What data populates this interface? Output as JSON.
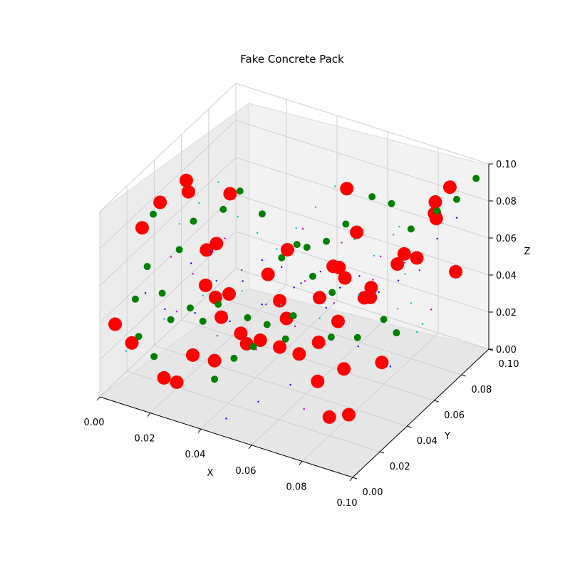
{
  "chart_data": {
    "type": "scatter3d",
    "title": "Fake Concrete Pack",
    "xlabel": "X",
    "ylabel": "Y",
    "zlabel": "Z",
    "xlim": [
      0,
      0.1
    ],
    "ylim": [
      0,
      0.1
    ],
    "zlim": [
      0,
      0.1
    ],
    "grid": true,
    "x_ticks": [
      "0.00",
      "0.02",
      "0.04",
      "0.06",
      "0.08",
      "0.10"
    ],
    "y_ticks": [
      "0.00",
      "0.02",
      "0.04",
      "0.06",
      "0.08",
      "0.10"
    ],
    "z_ticks": [
      "0.00",
      "0.02",
      "0.04",
      "0.06",
      "0.08",
      "0.10"
    ],
    "series": [
      {
        "color": "#ff0000",
        "marker_size": "large",
        "points": [
          [
            0.01,
            0.045,
            0.09
          ],
          [
            0.03,
            0.04,
            0.095
          ],
          [
            0.035,
            0.03,
            0.05
          ],
          [
            0.006,
            0.02,
            0.08
          ],
          [
            0.012,
            0.022,
            0.095
          ],
          [
            0.02,
            0.028,
            0.1
          ],
          [
            0.025,
            0.032,
            0.068
          ],
          [
            0.03,
            0.03,
            0.075
          ],
          [
            0.045,
            0.04,
            0.058
          ],
          [
            0.05,
            0.045,
            0.07
          ],
          [
            0.06,
            0.05,
            0.045
          ],
          [
            0.055,
            0.035,
            0.042
          ],
          [
            0.065,
            0.055,
            0.06
          ],
          [
            0.07,
            0.05,
            0.06
          ],
          [
            0.075,
            0.055,
            0.048
          ],
          [
            0.08,
            0.07,
            0.058
          ],
          [
            0.085,
            0.075,
            0.06
          ],
          [
            0.09,
            0.08,
            0.08
          ],
          [
            0.095,
            0.07,
            0.098
          ],
          [
            0.09,
            0.09,
            0.09
          ],
          [
            0.085,
            0.088,
            0.075
          ],
          [
            0.08,
            0.075,
            0.06
          ],
          [
            0.075,
            0.06,
            0.05
          ],
          [
            0.07,
            0.045,
            0.04
          ],
          [
            0.065,
            0.04,
            0.03
          ],
          [
            0.06,
            0.035,
            0.025
          ],
          [
            0.055,
            0.03,
            0.03
          ],
          [
            0.05,
            0.025,
            0.035
          ],
          [
            0.045,
            0.02,
            0.04
          ],
          [
            0.04,
            0.015,
            0.05
          ],
          [
            0.035,
            0.02,
            0.055
          ],
          [
            0.03,
            0.022,
            0.058
          ],
          [
            0.026,
            0.02,
            0.02
          ],
          [
            0.02,
            0.01,
            0.012
          ],
          [
            0.024,
            0.012,
            0.01
          ],
          [
            0.01,
            0.005,
            0.03
          ],
          [
            0.005,
            0.002,
            0.04
          ],
          [
            0.04,
            0.01,
            0.03
          ],
          [
            0.05,
            0.015,
            0.04
          ],
          [
            0.055,
            0.03,
            0.055
          ],
          [
            0.06,
            0.06,
            0.055
          ],
          [
            0.072,
            0.065,
            0.04
          ],
          [
            0.075,
            0.04,
            0.02
          ],
          [
            0.07,
            0.03,
            0.018
          ],
          [
            0.08,
            0.02,
            0.01
          ],
          [
            0.085,
            0.025,
            0.01
          ],
          [
            0.09,
            0.04,
            0.03
          ],
          [
            0.095,
            0.085,
            0.05
          ],
          [
            0.06,
            0.07,
            0.09
          ],
          [
            0.065,
            0.068,
            0.07
          ]
        ]
      },
      {
        "color": "#008000",
        "marker_size": "medium",
        "points": [
          [
            0.005,
            0.03,
            0.08
          ],
          [
            0.006,
            0.015,
            0.045
          ],
          [
            0.01,
            0.01,
            0.03
          ],
          [
            0.008,
            0.02,
            0.06
          ],
          [
            0.015,
            0.018,
            0.05
          ],
          [
            0.018,
            0.025,
            0.07
          ],
          [
            0.022,
            0.028,
            0.085
          ],
          [
            0.03,
            0.035,
            0.09
          ],
          [
            0.035,
            0.038,
            0.1
          ],
          [
            0.04,
            0.045,
            0.085
          ],
          [
            0.045,
            0.05,
            0.06
          ],
          [
            0.05,
            0.052,
            0.068
          ],
          [
            0.055,
            0.05,
            0.07
          ],
          [
            0.06,
            0.055,
            0.072
          ],
          [
            0.065,
            0.06,
            0.08
          ],
          [
            0.07,
            0.07,
            0.09
          ],
          [
            0.075,
            0.075,
            0.085
          ],
          [
            0.08,
            0.08,
            0.07
          ],
          [
            0.085,
            0.09,
            0.075
          ],
          [
            0.09,
            0.095,
            0.08
          ],
          [
            0.095,
            0.1,
            0.09
          ],
          [
            0.04,
            0.01,
            0.02
          ],
          [
            0.045,
            0.015,
            0.03
          ],
          [
            0.05,
            0.02,
            0.035
          ],
          [
            0.06,
            0.025,
            0.04
          ],
          [
            0.07,
            0.04,
            0.035
          ],
          [
            0.075,
            0.05,
            0.03
          ],
          [
            0.08,
            0.06,
            0.035
          ],
          [
            0.085,
            0.06,
            0.03
          ],
          [
            0.03,
            0.02,
            0.04
          ],
          [
            0.02,
            0.015,
            0.04
          ],
          [
            0.025,
            0.02,
            0.045
          ],
          [
            0.015,
            0.012,
            0.02
          ],
          [
            0.06,
            0.045,
            0.06
          ],
          [
            0.065,
            0.05,
            0.05
          ],
          [
            0.055,
            0.04,
            0.04
          ],
          [
            0.05,
            0.03,
            0.04
          ],
          [
            0.045,
            0.025,
            0.045
          ],
          [
            0.035,
            0.022,
            0.05
          ]
        ]
      },
      {
        "color": "#0000ff",
        "marker_size": "small",
        "points": [
          [
            0.02,
            0.03,
            0.06
          ],
          [
            0.025,
            0.035,
            0.065
          ],
          [
            0.03,
            0.03,
            0.055
          ],
          [
            0.035,
            0.04,
            0.05
          ],
          [
            0.04,
            0.045,
            0.06
          ],
          [
            0.045,
            0.05,
            0.055
          ],
          [
            0.05,
            0.055,
            0.045
          ],
          [
            0.055,
            0.06,
            0.05
          ],
          [
            0.06,
            0.065,
            0.04
          ],
          [
            0.065,
            0.07,
            0.045
          ],
          [
            0.07,
            0.075,
            0.035
          ],
          [
            0.075,
            0.08,
            0.04
          ],
          [
            0.08,
            0.085,
            0.05
          ],
          [
            0.085,
            0.09,
            0.06
          ],
          [
            0.09,
            0.095,
            0.07
          ],
          [
            0.015,
            0.02,
            0.04
          ],
          [
            0.01,
            0.015,
            0.05
          ],
          [
            0.028,
            0.018,
            0.045
          ],
          [
            0.038,
            0.025,
            0.04
          ],
          [
            0.048,
            0.03,
            0.05
          ],
          [
            0.058,
            0.035,
            0.06
          ],
          [
            0.068,
            0.04,
            0.05
          ],
          [
            0.078,
            0.045,
            0.03
          ],
          [
            0.088,
            0.05,
            0.02
          ],
          [
            0.05,
            0.0,
            0.01
          ],
          [
            0.06,
            0.005,
            0.02
          ],
          [
            0.07,
            0.01,
            0.03
          ]
        ]
      },
      {
        "color": "#00bfbf",
        "marker_size": "small",
        "points": [
          [
            0.01,
            0.04,
            0.07
          ],
          [
            0.015,
            0.045,
            0.08
          ],
          [
            0.02,
            0.05,
            0.09
          ],
          [
            0.025,
            0.055,
            0.07
          ],
          [
            0.03,
            0.06,
            0.06
          ],
          [
            0.035,
            0.065,
            0.05
          ],
          [
            0.04,
            0.07,
            0.06
          ],
          [
            0.045,
            0.075,
            0.07
          ],
          [
            0.05,
            0.08,
            0.08
          ],
          [
            0.055,
            0.085,
            0.05
          ],
          [
            0.06,
            0.09,
            0.04
          ],
          [
            0.065,
            0.095,
            0.05
          ],
          [
            0.07,
            0.09,
            0.06
          ],
          [
            0.075,
            0.085,
            0.04
          ],
          [
            0.08,
            0.08,
            0.03
          ],
          [
            0.085,
            0.075,
            0.02
          ],
          [
            0.09,
            0.07,
            0.03
          ],
          [
            0.005,
            0.01,
            0.02
          ],
          [
            0.012,
            0.025,
            0.03
          ],
          [
            0.022,
            0.035,
            0.04
          ],
          [
            0.032,
            0.045,
            0.04
          ],
          [
            0.042,
            0.055,
            0.03
          ],
          [
            0.052,
            0.065,
            0.02
          ],
          [
            0.062,
            0.075,
            0.03
          ],
          [
            0.072,
            0.085,
            0.02
          ]
        ]
      },
      {
        "color": "#bf00bf",
        "marker_size": "small",
        "points": [
          [
            0.012,
            0.03,
            0.06
          ],
          [
            0.018,
            0.035,
            0.05
          ],
          [
            0.028,
            0.04,
            0.07
          ],
          [
            0.038,
            0.05,
            0.08
          ],
          [
            0.048,
            0.06,
            0.07
          ],
          [
            0.058,
            0.07,
            0.06
          ],
          [
            0.068,
            0.08,
            0.05
          ],
          [
            0.078,
            0.09,
            0.04
          ],
          [
            0.088,
            0.08,
            0.03
          ],
          [
            0.033,
            0.025,
            0.03
          ],
          [
            0.043,
            0.035,
            0.02
          ],
          [
            0.053,
            0.045,
            0.03
          ],
          [
            0.063,
            0.055,
            0.04
          ],
          [
            0.073,
            0.065,
            0.05
          ],
          [
            0.083,
            0.07,
            0.06
          ],
          [
            0.07,
            0.02,
            0.01
          ],
          [
            0.04,
            0.03,
            0.065
          ],
          [
            0.025,
            0.01,
            0.05
          ],
          [
            0.055,
            0.02,
            0.06
          ],
          [
            0.065,
            0.03,
            0.07
          ]
        ]
      }
    ]
  }
}
